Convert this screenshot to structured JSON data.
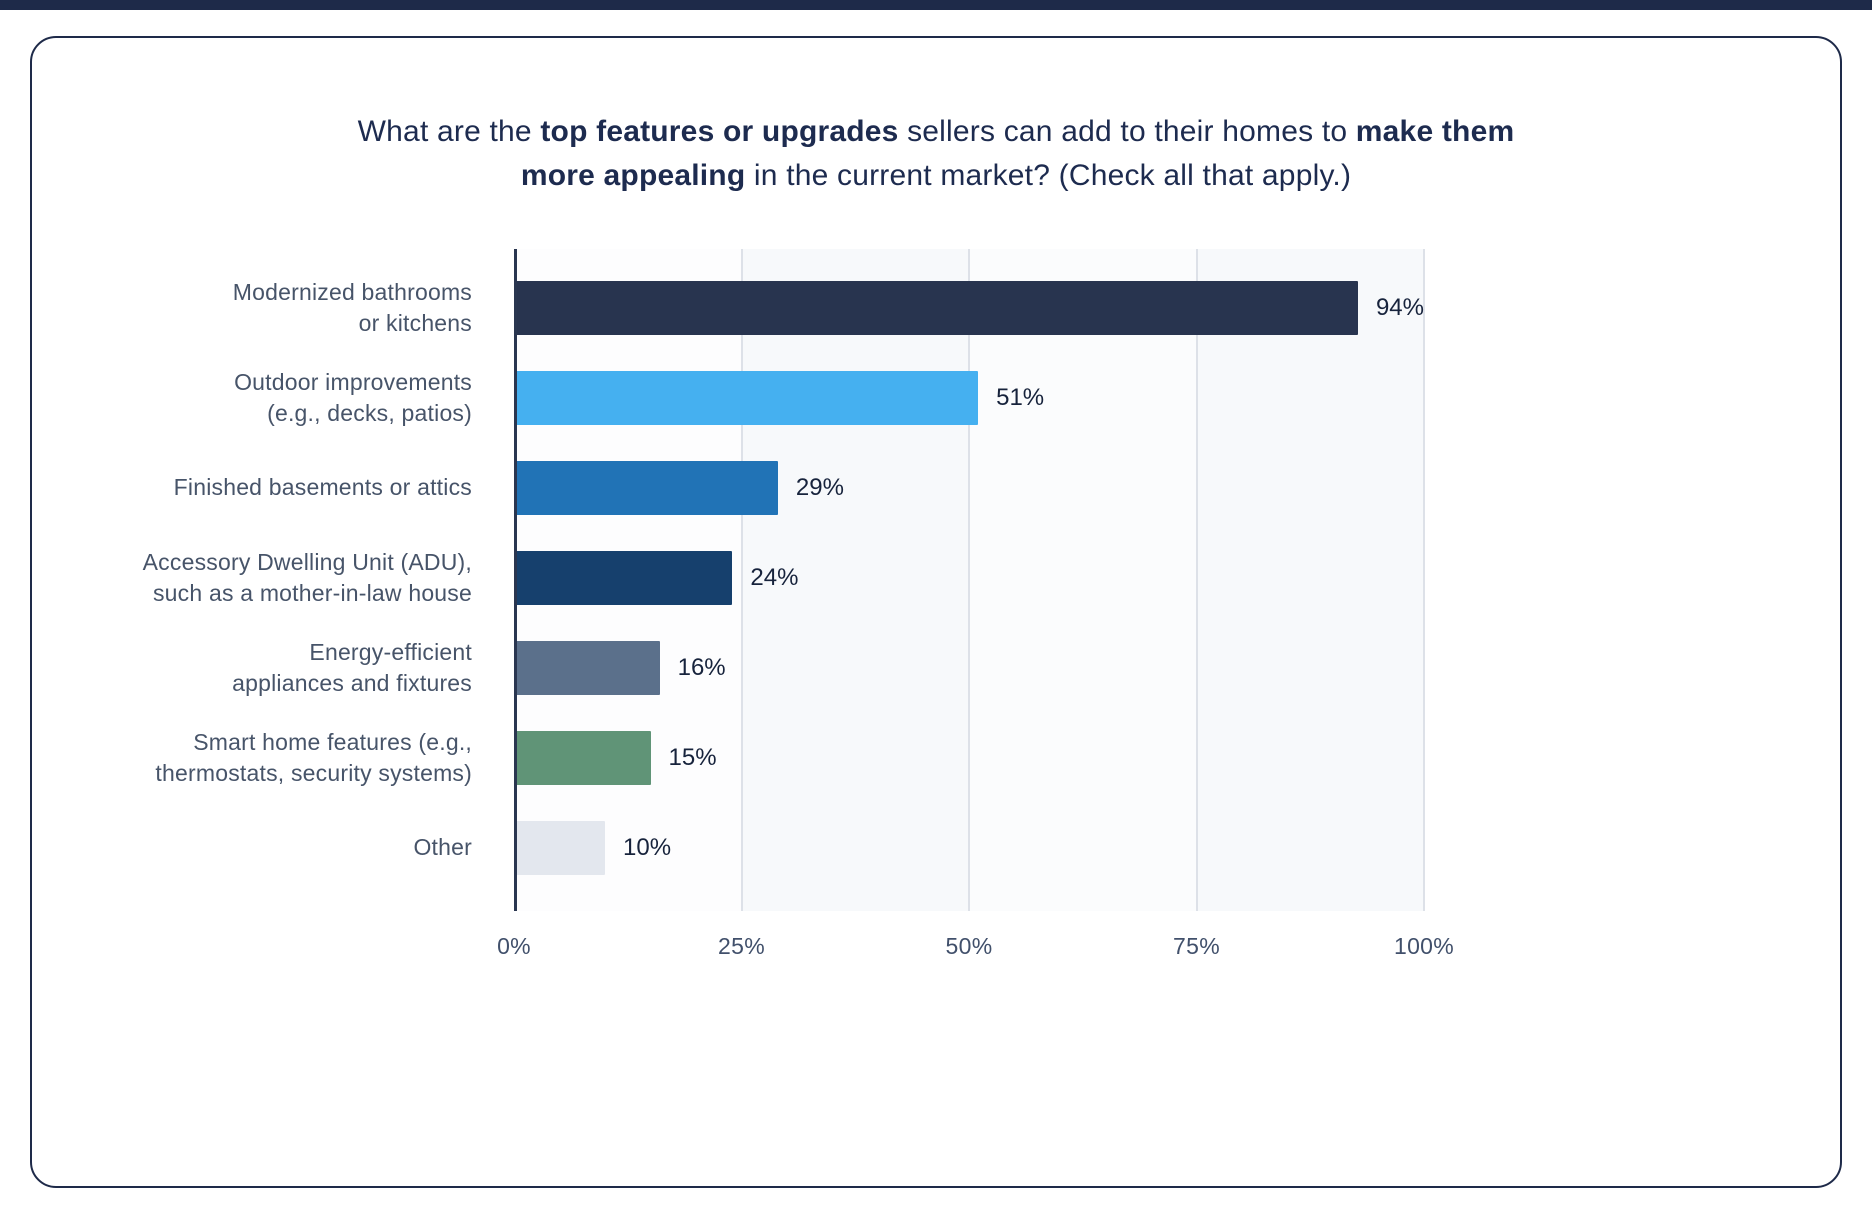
{
  "page": {
    "top_strip_color": "#1e2a49",
    "background_color": "#ffffff",
    "card_border_color": "#1e2a49"
  },
  "title": {
    "full_text": "What are the top features or upgrades sellers can add to their homes to make them more appealing in the current market? (Check all that apply.)",
    "segments": [
      {
        "text": "What are the ",
        "bold": false
      },
      {
        "text": "top features or upgrades",
        "bold": true
      },
      {
        "text": " sellers can add to their homes to ",
        "bold": false
      },
      {
        "text": "make them more appealing",
        "bold": true
      },
      {
        "text": " in the current market? (Check all that apply.)",
        "bold": false
      }
    ]
  },
  "chart_data": {
    "type": "bar",
    "orientation": "horizontal",
    "title": "What are the top features or upgrades sellers can add to their homes to make them more appealing in the current market? (Check all that apply.)",
    "categories": [
      "Modernized bathrooms\nor kitchens",
      "Outdoor improvements\n(e.g., decks, patios)",
      "Finished basements or attics",
      "Accessory Dwelling Unit (ADU),\nsuch as a mother-in-law house",
      "Energy-efficient\nappliances and fixtures",
      "Smart home features (e.g.,\nthermostats, security systems)",
      "Other"
    ],
    "values": [
      94,
      51,
      29,
      24,
      16,
      15,
      10
    ],
    "value_labels": [
      "94%",
      "51%",
      "29%",
      "24%",
      "16%",
      "15%",
      "10%"
    ],
    "bar_colors": [
      "#28344f",
      "#45b0f0",
      "#2173b6",
      "#16406d",
      "#5b708b",
      "#609477",
      "#e3e7ee"
    ],
    "x_ticks": [
      "0%",
      "25%",
      "50%",
      "75%",
      "100%"
    ],
    "xlim": [
      0,
      100
    ],
    "grid": true,
    "legend": false,
    "axis_color": "#2a3650",
    "gridline_color": "#dde1e8",
    "category_label_color": "#475469",
    "value_label_color": "#17233c"
  }
}
